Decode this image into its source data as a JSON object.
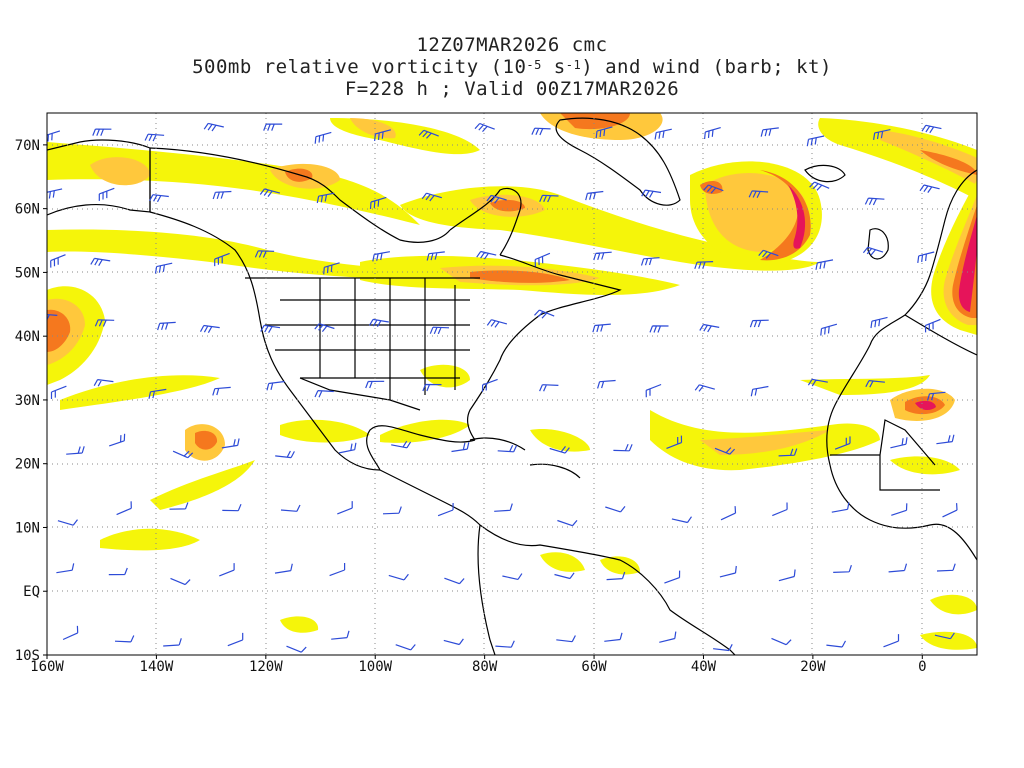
{
  "title": {
    "line1": "12Z07MAR2026 cmc",
    "line2_pre": "500mb relative vorticity (10",
    "line2_exp1": "-5",
    "line2_mid": " s",
    "line2_exp2": "-1",
    "line2_post": ") and wind (barb; kt)",
    "line3": "F=228 h ; Valid 00Z17MAR2026"
  },
  "axes": {
    "lon_ticks": [
      "160W",
      "140W",
      "120W",
      "100W",
      "80W",
      "60W",
      "40W",
      "20W",
      "0"
    ],
    "lon_values": [
      -160,
      -140,
      -120,
      -100,
      -80,
      -60,
      -40,
      -20,
      0
    ],
    "lat_ticks": [
      "70N",
      "60N",
      "50N",
      "40N",
      "30N",
      "20N",
      "10N",
      "EQ",
      "10S"
    ],
    "lat_values": [
      70,
      60,
      50,
      40,
      30,
      20,
      10,
      0,
      -10
    ],
    "lon_range": [
      -160,
      10
    ],
    "lat_range": [
      -10,
      75
    ],
    "grid": "dotted"
  },
  "colors": {
    "vort_low": "#f5f50a",
    "vort_mid": "#ffc83c",
    "vort_high": "#f5781e",
    "vort_max": "#e6145a",
    "barb": "#2d4bd7",
    "coast": "#000000",
    "grid": "#888888"
  }
}
